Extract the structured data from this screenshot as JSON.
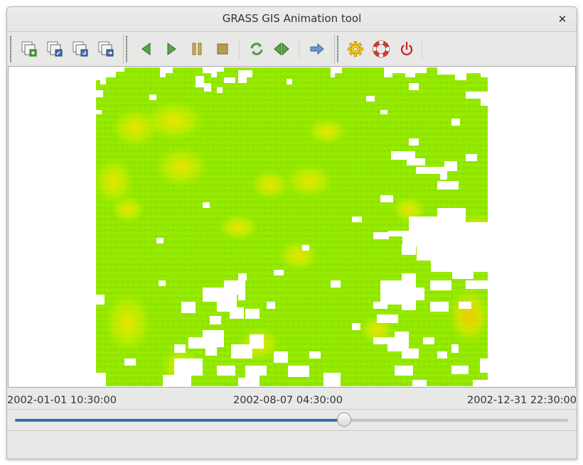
{
  "window": {
    "title": "GRASS GIS Animation tool"
  },
  "toolbar": {
    "buttons": [
      {
        "name": "add-animation",
        "icon": "layer-add-icon"
      },
      {
        "name": "edit-animation",
        "icon": "layer-edit-icon"
      },
      {
        "name": "reload-animation",
        "icon": "layer-reload-icon"
      },
      {
        "name": "export-animation",
        "icon": "layer-export-icon"
      },
      {
        "name": "play-back",
        "icon": "play-back-icon"
      },
      {
        "name": "play",
        "icon": "play-icon"
      },
      {
        "name": "pause",
        "icon": "pause-icon"
      },
      {
        "name": "stop",
        "icon": "stop-icon"
      },
      {
        "name": "loop",
        "icon": "loop-icon"
      },
      {
        "name": "bounce",
        "icon": "bounce-icon"
      },
      {
        "name": "speed",
        "icon": "arrow-right-icon"
      },
      {
        "name": "settings",
        "icon": "gear-icon"
      },
      {
        "name": "help",
        "icon": "lifebuoy-icon"
      },
      {
        "name": "quit",
        "icon": "power-icon"
      }
    ]
  },
  "timeline": {
    "start_label": "2002-01-01 10:30:00",
    "current_label": "2002-08-07 04:30:00",
    "end_label": "2002-12-31 22:30:00",
    "progress_fraction": 0.595
  },
  "colors": {
    "accent": "#3a6fb0",
    "raster_green": "#8fe800",
    "raster_yellow": "#f0e800",
    "raster_orange": "#f7c300",
    "stop_red": "#c8201e",
    "nav_green": "#4d9a3a"
  }
}
